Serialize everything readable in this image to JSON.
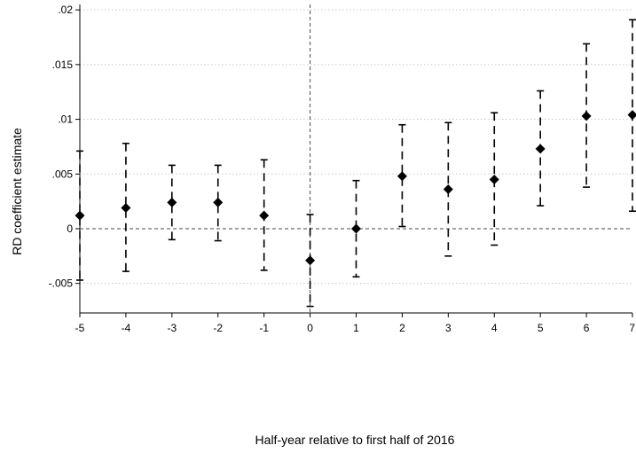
{
  "chart_data": {
    "type": "scatter",
    "subtype": "coefficient plot with confidence intervals",
    "title": "",
    "xlabel": "Half-year relative to first half of 2016",
    "ylabel": "RD coefficient estimate",
    "x_ticks": [
      -5,
      -4,
      -3,
      -2,
      -1,
      0,
      1,
      2,
      3,
      4,
      5,
      6,
      7
    ],
    "x_tick_labels": [
      "-5",
      "-4",
      "-3",
      "-2",
      "-1",
      "0",
      "1",
      "2",
      "3",
      "4",
      "5",
      "6",
      "7"
    ],
    "y_ticks": [
      -0.005,
      0,
      0.005,
      0.01,
      0.015,
      0.02
    ],
    "y_tick_labels": [
      "-.005",
      "0",
      ".005",
      ".01",
      ".015",
      ".02"
    ],
    "xlim": [
      -5,
      7
    ],
    "ylim": [
      -0.0077,
      0.0205
    ],
    "grid": "horizontal dotted",
    "reference_lines": {
      "x": 0,
      "y": 0,
      "style": "dashed"
    },
    "marker": "diamond",
    "ci_style": "dashed with caps",
    "series": [
      {
        "x": [
          -5,
          -4,
          -3,
          -2,
          -1,
          0,
          1,
          2,
          3,
          4,
          5,
          6,
          7
        ],
        "y": [
          0.0012,
          0.0019,
          0.0024,
          0.0024,
          0.0012,
          -0.0029,
          0.0,
          0.0048,
          0.0036,
          0.0045,
          0.0073,
          0.0103,
          0.0104
        ],
        "lower": [
          -0.0047,
          -0.0039,
          -0.001,
          -0.0011,
          -0.0038,
          -0.0071,
          -0.0044,
          0.0002,
          -0.0025,
          -0.0015,
          0.0021,
          0.0038,
          0.0016
        ],
        "upper": [
          0.0071,
          0.0078,
          0.0058,
          0.0058,
          0.0063,
          0.0013,
          0.0044,
          0.0095,
          0.0097,
          0.0106,
          0.0126,
          0.0169,
          0.0191
        ]
      }
    ]
  }
}
